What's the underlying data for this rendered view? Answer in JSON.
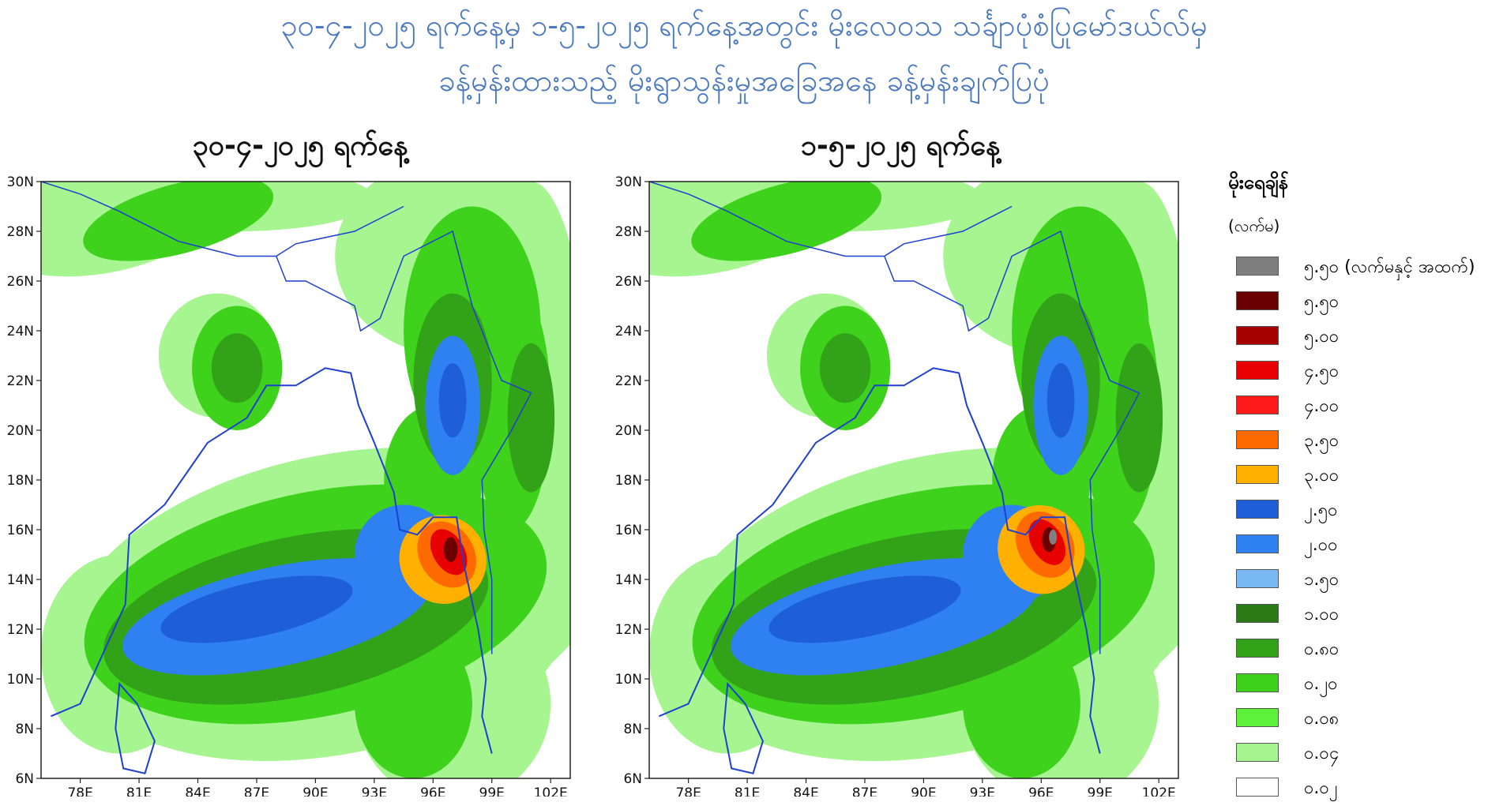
{
  "title": {
    "line1": "၃၀-၄-၂၀၂၅ ရက်နေ့မှ ၁-၅-၂၀၂၅ ရက်နေ့အတွင်း မိုးလေဝသ သင်္ချာပုံစံပြုမော်ဒယ်လ်မှ",
    "line2": "ခန့်မှန်းထားသည့် မိုးရွာသွန်းမှုအခြေအနေ ခန့်မှန်းချက်ပြပုံ"
  },
  "maps": [
    {
      "date_label": "၃၀-၄-၂၀၂၅ ရက်နေ့",
      "cyclone_center": {
        "lon": 96.5,
        "lat": 14.8
      }
    },
    {
      "date_label": "၁-၅-၂၀၂၅ ရက်နေ့",
      "cyclone_center": {
        "lon": 96.0,
        "lat": 15.2
      }
    }
  ],
  "axes": {
    "lat_ticks": [
      "30N",
      "28N",
      "26N",
      "24N",
      "22N",
      "20N",
      "18N",
      "16N",
      "14N",
      "12N",
      "10N",
      "8N",
      "6N"
    ],
    "lon_ticks": [
      "78E",
      "81E",
      "84E",
      "87E",
      "90E",
      "93E",
      "96E",
      "99E",
      "102E"
    ],
    "lat_range": [
      6,
      30
    ],
    "lon_range": [
      76,
      103
    ]
  },
  "legend": {
    "title": "မိုးရေချိန်",
    "unit": "(လက်မ)",
    "items": [
      {
        "label": "၅.၅၀ (လက်မနှင့် အထက်)",
        "color": "#7f7f7f"
      },
      {
        "label": "၅.၅၀",
        "color": "#6b0000"
      },
      {
        "label": "၅.၀၀",
        "color": "#a60000"
      },
      {
        "label": "၄.၅၀",
        "color": "#e60000"
      },
      {
        "label": "၄.၀၀",
        "color": "#ff1a1a"
      },
      {
        "label": "၃.၅၀",
        "color": "#ff6a00"
      },
      {
        "label": "၃.၀၀",
        "color": "#ffb000"
      },
      {
        "label": "၂.၅၀",
        "color": "#1e5fd8"
      },
      {
        "label": "၂.၀၀",
        "color": "#2f80f0"
      },
      {
        "label": "၁.၅၀",
        "color": "#7ab8f5"
      },
      {
        "label": "၁.၀၀",
        "color": "#2a7a18"
      },
      {
        "label": "၀.၈၀",
        "color": "#32a318"
      },
      {
        "label": "၀.၂၀",
        "color": "#3ed21c"
      },
      {
        "label": "၀.၀၈",
        "color": "#5cf23a"
      },
      {
        "label": "၀.၀၄",
        "color": "#a6f590"
      },
      {
        "label": "၀.၀၂",
        "color": "#ffffff"
      }
    ]
  }
}
